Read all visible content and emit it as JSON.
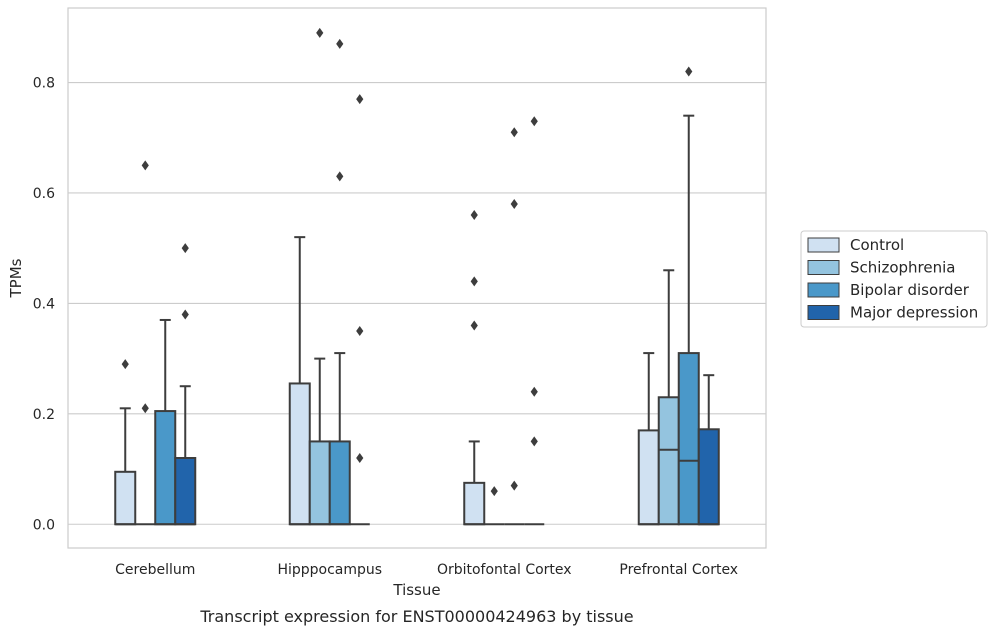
{
  "caption": "Transcript expression for ENST00000424963 by tissue",
  "chart_data": {
    "type": "box",
    "xlabel": "Tissue",
    "ylabel": "TPMs",
    "ylim": [
      -0.043,
      0.935
    ],
    "yticks": [
      0.0,
      0.2,
      0.4,
      0.6,
      0.8
    ],
    "ytick_labels": [
      "0.0",
      "0.2",
      "0.4",
      "0.6",
      "0.8"
    ],
    "grid": "horizontal",
    "legend_position": "right",
    "categories": [
      "Cerebellum",
      "Hipppocampus",
      "Orbitofontal Cortex",
      "Prefrontal Cortex"
    ],
    "series": [
      {
        "name": "Control",
        "color": "#d0e1f2",
        "boxes": [
          {
            "min": 0,
            "q1": 0,
            "median": 0,
            "q3": 0.095,
            "max": 0.21,
            "outliers": [
              0.29
            ]
          },
          {
            "min": 0,
            "q1": 0,
            "median": 0,
            "q3": 0.255,
            "max": 0.52,
            "outliers": []
          },
          {
            "min": 0,
            "q1": 0,
            "median": 0,
            "q3": 0.075,
            "max": 0.15,
            "outliers": [
              0.36,
              0.44,
              0.56
            ]
          },
          {
            "min": 0,
            "q1": 0,
            "median": 0,
            "q3": 0.17,
            "max": 0.31,
            "outliers": []
          }
        ]
      },
      {
        "name": "Schizophrenia",
        "color": "#94c4df",
        "boxes": [
          {
            "min": 0,
            "q1": 0,
            "median": 0,
            "q3": 0,
            "max": 0,
            "outliers": [
              0.21,
              0.65
            ]
          },
          {
            "min": 0,
            "q1": 0,
            "median": 0,
            "q3": 0.15,
            "max": 0.3,
            "outliers": [
              0.89
            ]
          },
          {
            "min": 0,
            "q1": 0,
            "median": 0,
            "q3": 0,
            "max": 0,
            "outliers": [
              0.06
            ]
          },
          {
            "min": 0,
            "q1": 0,
            "median": 0.135,
            "q3": 0.23,
            "max": 0.46,
            "outliers": []
          }
        ]
      },
      {
        "name": "Bipolar disorder",
        "color": "#4a98c9",
        "boxes": [
          {
            "min": 0,
            "q1": 0,
            "median": 0,
            "q3": 0.205,
            "max": 0.37,
            "outliers": []
          },
          {
            "min": 0,
            "q1": 0,
            "median": 0,
            "q3": 0.15,
            "max": 0.31,
            "outliers": [
              0.63,
              0.87
            ]
          },
          {
            "min": 0,
            "q1": 0,
            "median": 0,
            "q3": 0,
            "max": 0,
            "outliers": [
              0.07,
              0.58,
              0.71
            ]
          },
          {
            "min": 0,
            "q1": 0,
            "median": 0.115,
            "q3": 0.31,
            "max": 0.74,
            "outliers": [
              0.82
            ]
          }
        ]
      },
      {
        "name": "Major depression",
        "color": "#2164ab",
        "boxes": [
          {
            "min": 0,
            "q1": 0,
            "median": 0,
            "q3": 0.12,
            "max": 0.25,
            "outliers": [
              0.38,
              0.5
            ]
          },
          {
            "min": 0,
            "q1": 0,
            "median": 0,
            "q3": 0,
            "max": 0,
            "outliers": [
              0.12,
              0.35,
              0.77
            ]
          },
          {
            "min": 0,
            "q1": 0,
            "median": 0,
            "q3": 0,
            "max": 0,
            "outliers": [
              0.15,
              0.24,
              0.73
            ]
          },
          {
            "min": 0,
            "q1": 0,
            "median": 0,
            "q3": 0.172,
            "max": 0.27,
            "outliers": []
          }
        ]
      }
    ]
  }
}
